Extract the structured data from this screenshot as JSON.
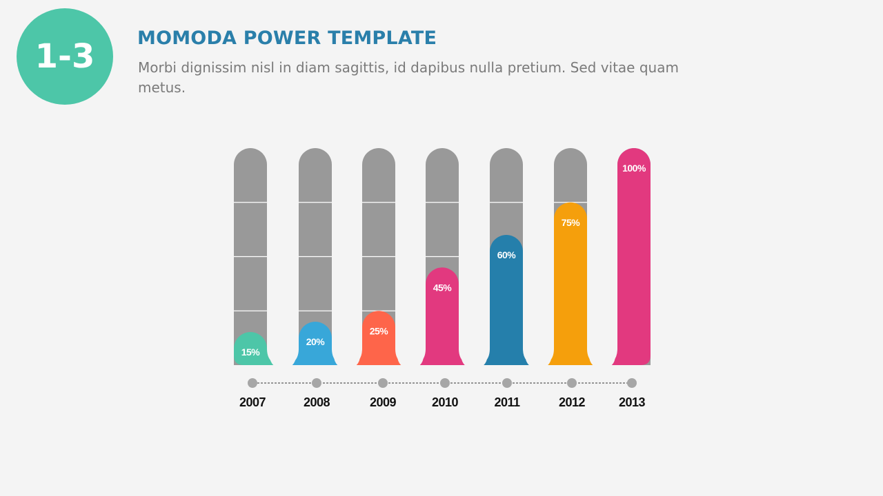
{
  "header": {
    "badge": "1-3",
    "title": "MOMODA POWER TEMPLATE",
    "subtitle": "Morbi dignissim nisl in diam sagittis, id dapibus nulla pretium. Sed vitae quam metus."
  },
  "colors": {
    "badge": "#4dc6a8",
    "title": "#2a7faa",
    "track": "#999999",
    "timeline": "#a6a6a6",
    "label": "#111111"
  },
  "chart_data": {
    "type": "bar",
    "categories": [
      "2007",
      "2008",
      "2009",
      "2010",
      "2011",
      "2012",
      "2013"
    ],
    "values": [
      15,
      20,
      25,
      45,
      60,
      75,
      100
    ],
    "value_labels": [
      "15%",
      "20%",
      "25%",
      "45%",
      "60%",
      "75%",
      "100%"
    ],
    "colors": [
      "#4dc6a8",
      "#38a7d9",
      "#fe654a",
      "#e2397f",
      "#257fab",
      "#f59f0c",
      "#e2397f"
    ],
    "ylim": [
      0,
      100
    ],
    "grid_lines": [
      25,
      50,
      75
    ]
  }
}
